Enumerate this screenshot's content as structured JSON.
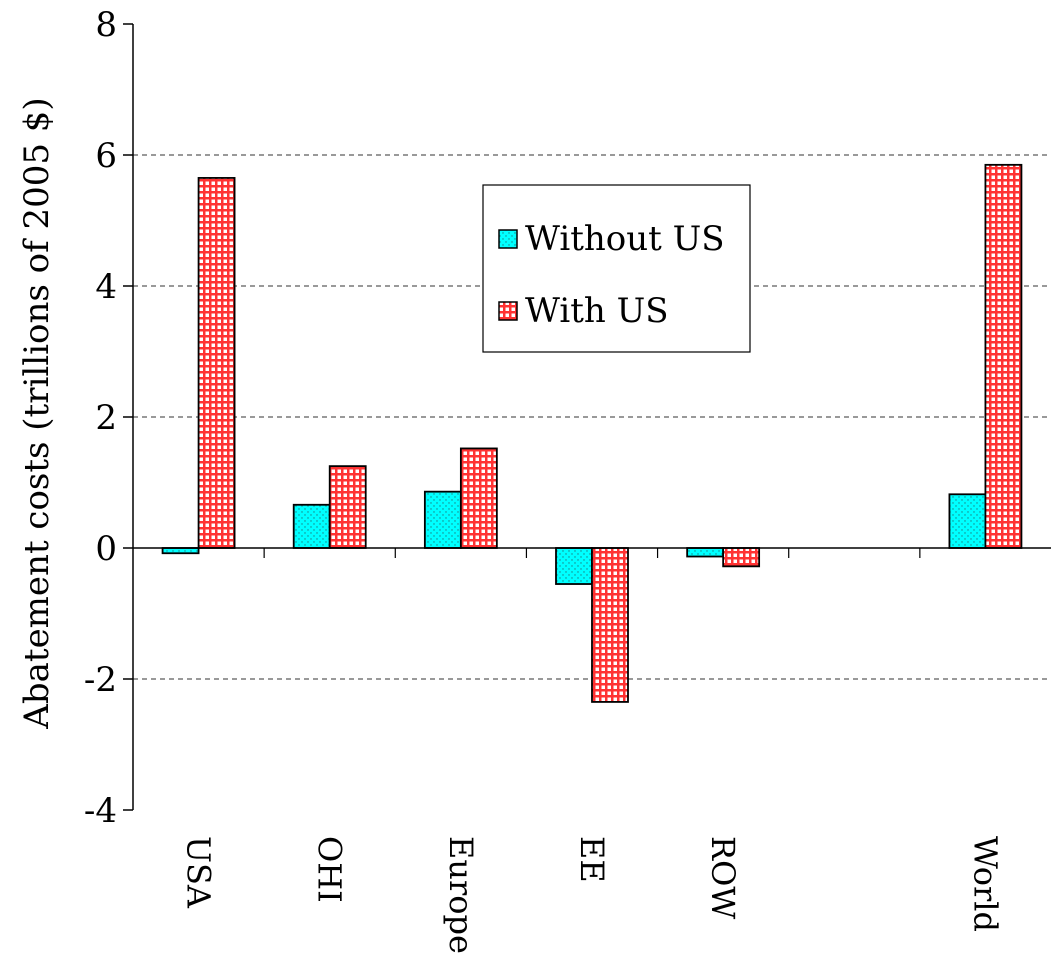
{
  "chart_data": {
    "type": "bar",
    "title": "",
    "xlabel": "",
    "ylabel": "Abatement costs (trillions of 2005 $)",
    "ylim": [
      -4,
      8
    ],
    "yticks": [
      -4,
      -2,
      0,
      2,
      4,
      6,
      8
    ],
    "ytick_labels": [
      "-4",
      "-2",
      "0",
      "2",
      "4",
      "6",
      "8"
    ],
    "grid": "dashed horizontal at 6, 4, 2, -2",
    "categories": [
      "USA",
      "OHI",
      "Europe",
      "EE",
      "ROW",
      "",
      "World"
    ],
    "series": [
      {
        "name": "Without US",
        "color": "#00ffff",
        "pattern": "dots",
        "values": [
          -0.08,
          0.66,
          0.86,
          -0.55,
          -0.13,
          null,
          0.82
        ]
      },
      {
        "name": "With US",
        "color": "#ff0000",
        "pattern": "grid",
        "values": [
          5.65,
          1.25,
          1.52,
          -2.35,
          -0.28,
          null,
          5.85
        ]
      }
    ],
    "legend": {
      "placement": "top-center-right",
      "entries": [
        "Without US",
        "With US"
      ]
    }
  }
}
